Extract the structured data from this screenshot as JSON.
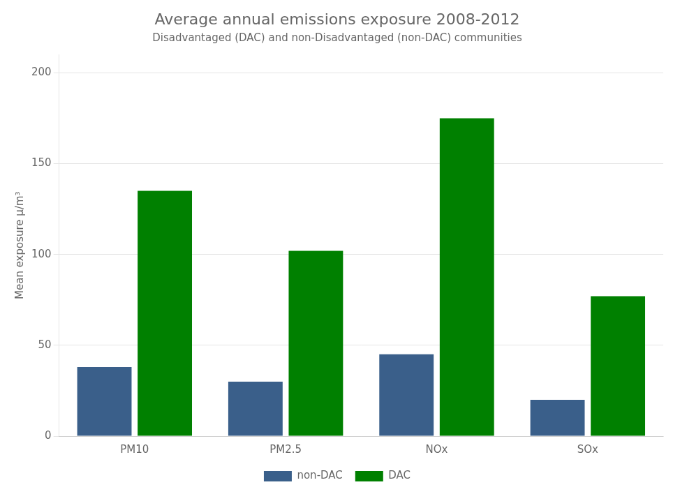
{
  "chart_data": {
    "type": "bar",
    "title": "Average annual emissions exposure 2008-2012",
    "subtitle": "Disadvantaged (DAC) and non-Disadvantaged (non-DAC) communities",
    "categories": [
      "PM10",
      "PM2.5",
      "NOx",
      "SOx"
    ],
    "series": [
      {
        "name": "non-DAC",
        "color": "#3A5F8A",
        "values": [
          38,
          30,
          45,
          20
        ]
      },
      {
        "name": "DAC",
        "color": "#008000",
        "values": [
          135,
          102,
          175,
          77
        ]
      }
    ],
    "ylabel": "Mean exposure μ/m³",
    "ylim": [
      0,
      210
    ],
    "yticks": [
      0,
      50,
      100,
      150,
      200
    ],
    "grid": true,
    "legend": "bottom"
  }
}
